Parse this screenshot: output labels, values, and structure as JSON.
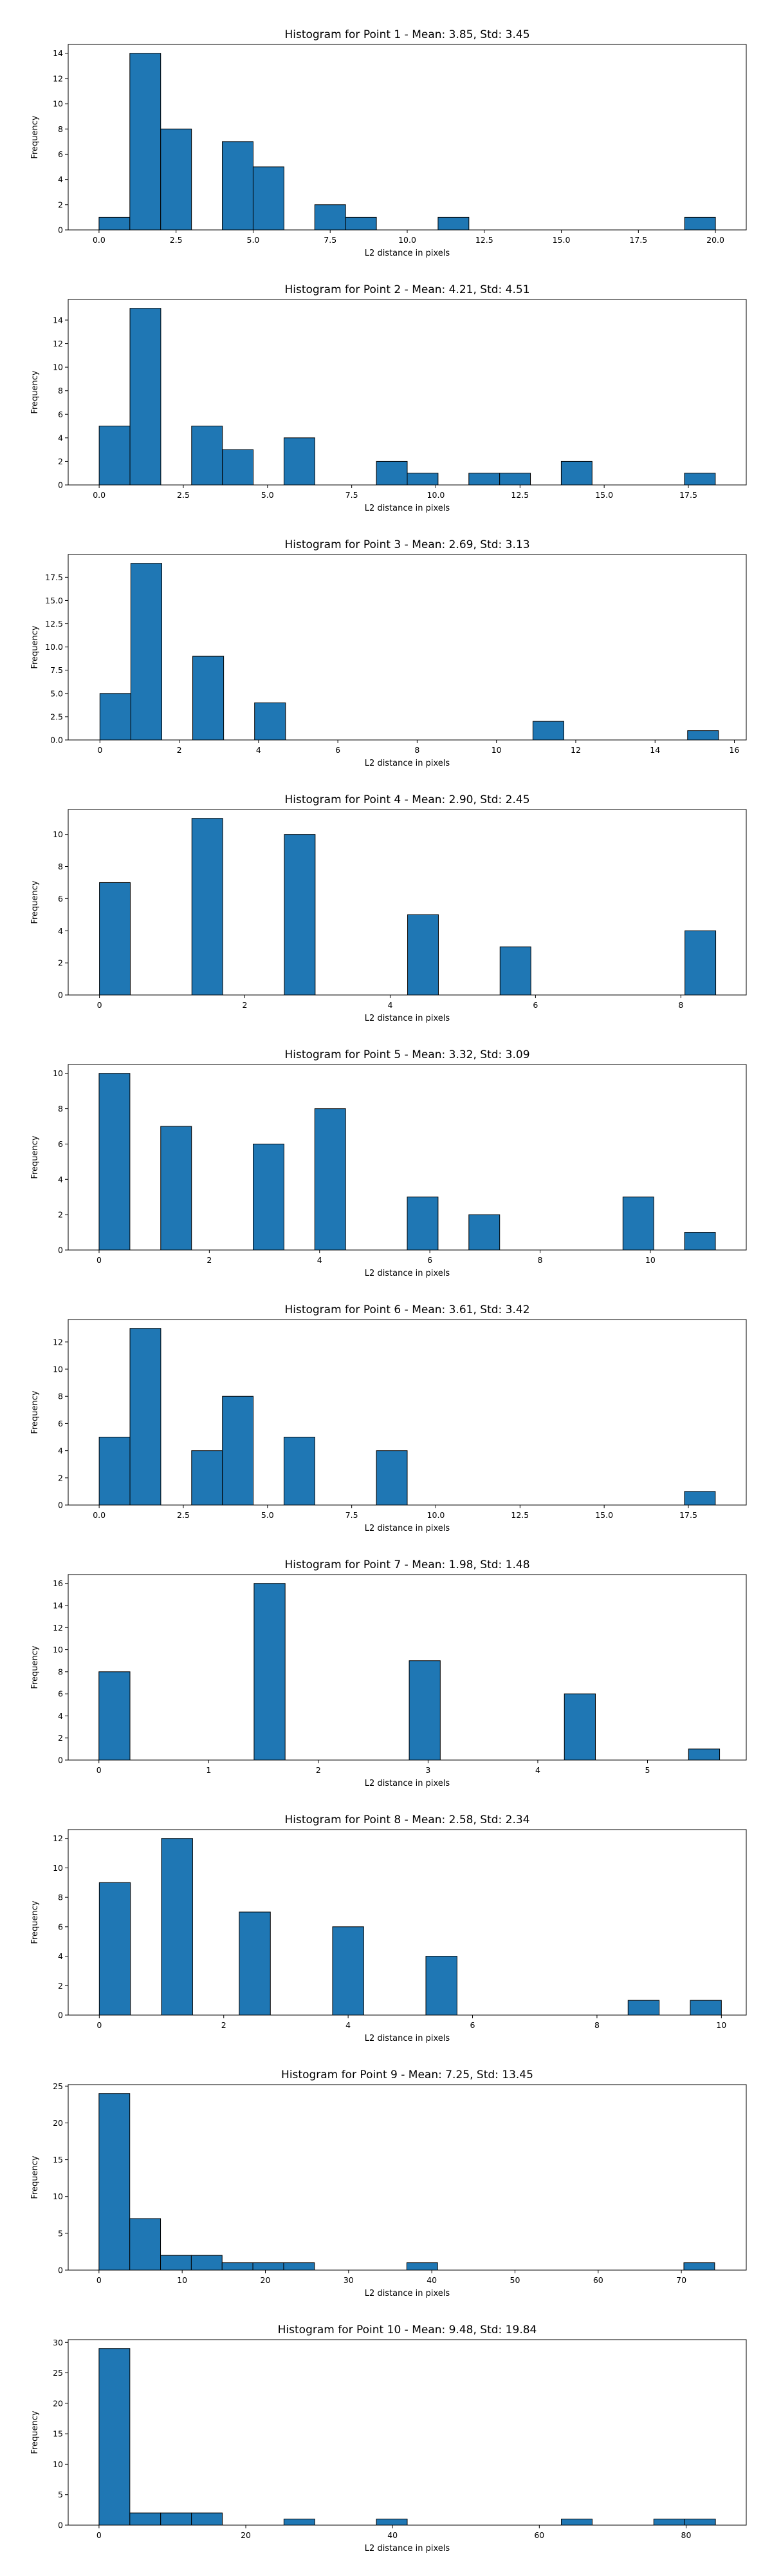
{
  "chart_data": [
    {
      "type": "bar",
      "title": "Histogram for Point 1 - Mean: 3.85, Std: 3.45",
      "xlabel": "L2 distance in pixels",
      "ylabel": "Frequency",
      "xlim": [
        -1.0,
        21.0
      ],
      "ylim": [
        0,
        14.7
      ],
      "xticks": [
        0.0,
        2.5,
        5.0,
        7.5,
        10.0,
        12.5,
        15.0,
        17.5,
        20.0
      ],
      "xtick_labels": [
        "0.0",
        "2.5",
        "5.0",
        "7.5",
        "10.0",
        "12.5",
        "15.0",
        "17.5",
        "20.0"
      ],
      "yticks": [
        0,
        2,
        4,
        6,
        8,
        10,
        12,
        14
      ],
      "ytick_labels": [
        "0",
        "2",
        "4",
        "6",
        "8",
        "10",
        "12",
        "14"
      ],
      "grid": false,
      "bins": [
        [
          0.0,
          1.0,
          1
        ],
        [
          1.0,
          2.0,
          14
        ],
        [
          2.0,
          3.0,
          8
        ],
        [
          4.0,
          5.0,
          7
        ],
        [
          5.0,
          6.0,
          5
        ],
        [
          7.0,
          8.0,
          2
        ],
        [
          8.0,
          9.0,
          1
        ],
        [
          11.0,
          12.0,
          1
        ],
        [
          19.0,
          20.0,
          1
        ]
      ]
    },
    {
      "type": "bar",
      "title": "Histogram for Point 2 - Mean: 4.21, Std: 4.51",
      "xlabel": "L2 distance in pixels",
      "ylabel": "Frequency",
      "xlim": [
        -0.92,
        19.22
      ],
      "ylim": [
        0,
        15.75
      ],
      "xticks": [
        0.0,
        2.5,
        5.0,
        7.5,
        10.0,
        12.5,
        15.0,
        17.5
      ],
      "xtick_labels": [
        "0.0",
        "2.5",
        "5.0",
        "7.5",
        "10.0",
        "12.5",
        "15.0",
        "17.5"
      ],
      "yticks": [
        0,
        2,
        4,
        6,
        8,
        10,
        12,
        14
      ],
      "ytick_labels": [
        "0",
        "2",
        "4",
        "6",
        "8",
        "10",
        "12",
        "14"
      ],
      "grid": false,
      "bins": [
        [
          0.0,
          0.915,
          5
        ],
        [
          0.915,
          1.83,
          15
        ],
        [
          2.745,
          3.66,
          5
        ],
        [
          3.66,
          4.575,
          3
        ],
        [
          5.49,
          6.405,
          4
        ],
        [
          8.235,
          9.15,
          2
        ],
        [
          9.15,
          10.065,
          1
        ],
        [
          10.98,
          11.895,
          1
        ],
        [
          11.895,
          12.81,
          1
        ],
        [
          13.725,
          14.64,
          2
        ],
        [
          17.385,
          18.3,
          1
        ]
      ]
    },
    {
      "type": "bar",
      "title": "Histogram for Point 3 - Mean: 2.69, Std: 3.13",
      "xlabel": "L2 distance in pixels",
      "ylabel": "Frequency",
      "xlim": [
        -0.8,
        16.3
      ],
      "ylim": [
        0,
        19.95
      ],
      "xticks": [
        0,
        2,
        4,
        6,
        8,
        10,
        12,
        14,
        16
      ],
      "xtick_labels": [
        "0",
        "2",
        "4",
        "6",
        "8",
        "10",
        "12",
        "14",
        "16"
      ],
      "yticks": [
        0.0,
        2.5,
        5.0,
        7.5,
        10.0,
        12.5,
        15.0,
        17.5
      ],
      "ytick_labels": [
        "0.0",
        "2.5",
        "5.0",
        "7.5",
        "10.0",
        "12.5",
        "15.0",
        "17.5"
      ],
      "grid": false,
      "bins": [
        [
          0.0,
          0.78,
          5
        ],
        [
          0.78,
          1.56,
          19
        ],
        [
          2.34,
          3.12,
          9
        ],
        [
          3.9,
          4.68,
          4
        ],
        [
          10.92,
          11.7,
          2
        ],
        [
          14.82,
          15.6,
          1
        ]
      ]
    },
    {
      "type": "bar",
      "title": "Histogram for Point 4 - Mean: 2.90, Std: 2.45",
      "xlabel": "L2 distance in pixels",
      "ylabel": "Frequency",
      "xlim": [
        -0.43,
        8.9
      ],
      "ylim": [
        0,
        11.55
      ],
      "xticks": [
        0,
        2,
        4,
        6,
        8
      ],
      "xtick_labels": [
        "0",
        "2",
        "4",
        "6",
        "8"
      ],
      "yticks": [
        0,
        2,
        4,
        6,
        8,
        10
      ],
      "ytick_labels": [
        "0",
        "2",
        "4",
        "6",
        "8",
        "10"
      ],
      "grid": false,
      "bins": [
        [
          0.0,
          0.424,
          7
        ],
        [
          1.272,
          1.696,
          11
        ],
        [
          2.544,
          2.968,
          10
        ],
        [
          4.24,
          4.664,
          5
        ],
        [
          5.512,
          5.936,
          3
        ],
        [
          8.056,
          8.48,
          4
        ]
      ]
    },
    {
      "type": "bar",
      "title": "Histogram for Point 5 - Mean: 3.32, Std: 3.09",
      "xlabel": "L2 distance in pixels",
      "ylabel": "Frequency",
      "xlim": [
        -0.56,
        11.74
      ],
      "ylim": [
        0,
        10.5
      ],
      "xticks": [
        0,
        2,
        4,
        6,
        8,
        10
      ],
      "xtick_labels": [
        "0",
        "2",
        "4",
        "6",
        "8",
        "10"
      ],
      "yticks": [
        0,
        2,
        4,
        6,
        8,
        10
      ],
      "ytick_labels": [
        "0",
        "2",
        "4",
        "6",
        "8",
        "10"
      ],
      "grid": false,
      "bins": [
        [
          0.0,
          0.559,
          10
        ],
        [
          1.118,
          1.677,
          7
        ],
        [
          2.795,
          3.354,
          6
        ],
        [
          3.913,
          4.472,
          8
        ],
        [
          5.59,
          6.149,
          3
        ],
        [
          6.708,
          7.267,
          2
        ],
        [
          9.503,
          10.062,
          3
        ],
        [
          10.621,
          11.18,
          1
        ]
      ]
    },
    {
      "type": "bar",
      "title": "Histogram for Point 6 - Mean: 3.61, Std: 3.42",
      "xlabel": "L2 distance in pixels",
      "ylabel": "Frequency",
      "xlim": [
        -0.92,
        19.22
      ],
      "ylim": [
        0,
        13.65
      ],
      "xticks": [
        0.0,
        2.5,
        5.0,
        7.5,
        10.0,
        12.5,
        15.0,
        17.5
      ],
      "xtick_labels": [
        "0.0",
        "2.5",
        "5.0",
        "7.5",
        "10.0",
        "12.5",
        "15.0",
        "17.5"
      ],
      "yticks": [
        0,
        2,
        4,
        6,
        8,
        10,
        12
      ],
      "ytick_labels": [
        "0",
        "2",
        "4",
        "6",
        "8",
        "10",
        "12"
      ],
      "grid": false,
      "bins": [
        [
          0.0,
          0.915,
          5
        ],
        [
          0.915,
          1.83,
          13
        ],
        [
          2.745,
          3.66,
          4
        ],
        [
          3.66,
          4.575,
          8
        ],
        [
          5.49,
          6.405,
          5
        ],
        [
          8.235,
          9.15,
          4
        ],
        [
          17.385,
          18.3,
          1
        ]
      ]
    },
    {
      "type": "bar",
      "title": "Histogram for Point 7 - Mean: 1.98, Std: 1.48",
      "xlabel": "L2 distance in pixels",
      "ylabel": "Frequency",
      "xlim": [
        -0.28,
        5.9
      ],
      "ylim": [
        0,
        16.8
      ],
      "xticks": [
        0,
        1,
        2,
        3,
        4,
        5
      ],
      "xtick_labels": [
        "0",
        "1",
        "2",
        "3",
        "4",
        "5"
      ],
      "yticks": [
        0,
        2,
        4,
        6,
        8,
        10,
        12,
        14,
        16
      ],
      "ytick_labels": [
        "0",
        "2",
        "4",
        "6",
        "8",
        "10",
        "12",
        "14",
        "16"
      ],
      "grid": false,
      "bins": [
        [
          0.0,
          0.283,
          8
        ],
        [
          1.414,
          1.697,
          16
        ],
        [
          2.828,
          3.111,
          9
        ],
        [
          4.242,
          4.525,
          6
        ],
        [
          5.374,
          5.657,
          1
        ]
      ]
    },
    {
      "type": "bar",
      "title": "Histogram for Point 8 - Mean: 2.58, Std: 2.34",
      "xlabel": "L2 distance in pixels",
      "ylabel": "Frequency",
      "xlim": [
        -0.5,
        10.4
      ],
      "ylim": [
        0,
        12.6
      ],
      "xticks": [
        0,
        2,
        4,
        6,
        8,
        10
      ],
      "xtick_labels": [
        "0",
        "2",
        "4",
        "6",
        "8",
        "10"
      ],
      "yticks": [
        0,
        2,
        4,
        6,
        8,
        10,
        12
      ],
      "ytick_labels": [
        "0",
        "2",
        "4",
        "6",
        "8",
        "10",
        "12"
      ],
      "grid": false,
      "bins": [
        [
          0.0,
          0.5,
          9
        ],
        [
          1.0,
          1.5,
          12
        ],
        [
          2.25,
          2.75,
          7
        ],
        [
          3.75,
          4.25,
          6
        ],
        [
          5.25,
          5.75,
          4
        ],
        [
          8.5,
          9.0,
          1
        ],
        [
          9.5,
          10.0,
          1
        ]
      ]
    },
    {
      "type": "bar",
      "title": "Histogram for Point 9 - Mean: 7.25, Std: 13.45",
      "xlabel": "L2 distance in pixels",
      "ylabel": "Frequency",
      "xlim": [
        -3.7,
        77.8
      ],
      "ylim": [
        0,
        25.2
      ],
      "xticks": [
        0,
        10,
        20,
        30,
        40,
        50,
        60,
        70
      ],
      "xtick_labels": [
        "0",
        "10",
        "20",
        "30",
        "40",
        "50",
        "60",
        "70"
      ],
      "yticks": [
        0,
        5,
        10,
        15,
        20,
        25
      ],
      "ytick_labels": [
        "0",
        "5",
        "10",
        "15",
        "20",
        "25"
      ],
      "grid": false,
      "bins": [
        [
          0.0,
          3.7,
          24
        ],
        [
          3.7,
          7.4,
          7
        ],
        [
          7.4,
          11.1,
          2
        ],
        [
          11.1,
          14.8,
          2
        ],
        [
          14.8,
          18.5,
          1
        ],
        [
          18.5,
          22.2,
          1
        ],
        [
          22.2,
          25.9,
          1
        ],
        [
          37.0,
          40.7,
          1
        ],
        [
          70.3,
          74.0,
          1
        ]
      ]
    },
    {
      "type": "bar",
      "title": "Histogram for Point 10 - Mean: 9.48, Std: 19.84",
      "xlabel": "L2 distance in pixels",
      "ylabel": "Frequency",
      "xlim": [
        -4.2,
        88.2
      ],
      "ylim": [
        0,
        30.45
      ],
      "xticks": [
        0,
        20,
        40,
        60,
        80
      ],
      "xtick_labels": [
        "0",
        "20",
        "40",
        "60",
        "80"
      ],
      "yticks": [
        0,
        5,
        10,
        15,
        20,
        25,
        30
      ],
      "ytick_labels": [
        "0",
        "5",
        "10",
        "15",
        "20",
        "25",
        "30"
      ],
      "grid": false,
      "bins": [
        [
          0.0,
          4.2,
          29
        ],
        [
          4.2,
          8.4,
          2
        ],
        [
          8.4,
          12.6,
          2
        ],
        [
          12.6,
          16.8,
          2
        ],
        [
          25.2,
          29.4,
          1
        ],
        [
          37.8,
          42.0,
          1
        ],
        [
          63.0,
          67.2,
          1
        ],
        [
          75.6,
          79.8,
          1
        ],
        [
          79.8,
          84.0,
          1
        ]
      ]
    }
  ],
  "colors": {
    "bar_fill": "#1f77b4",
    "bar_edge": "#000000",
    "axes": "#000000",
    "background": "#ffffff"
  }
}
